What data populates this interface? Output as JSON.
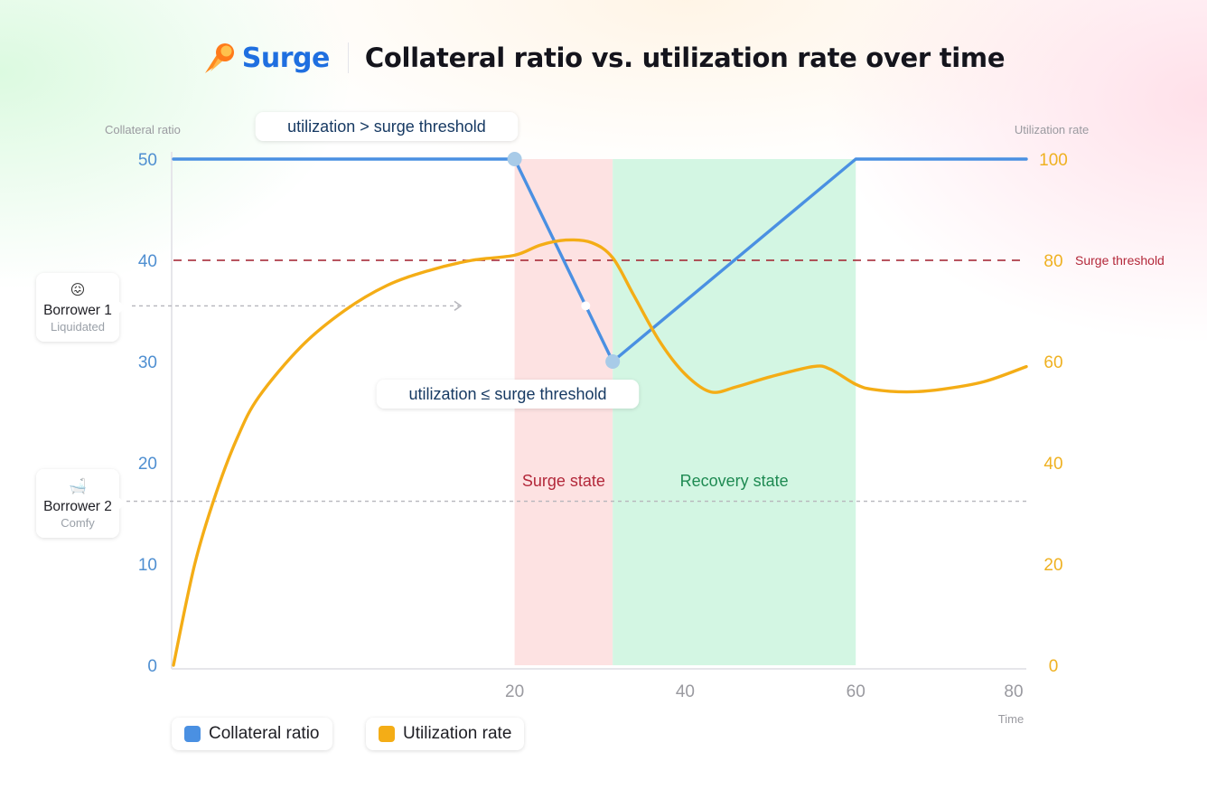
{
  "brand": {
    "name": "Surge",
    "icon": "comet-icon"
  },
  "title": "Collateral ratio vs. utilization rate over time",
  "colors": {
    "collateral": "#4a90e2",
    "utilization": "#f4ad16",
    "surge_fill": "#fde2e2",
    "recovery_fill": "#d3f6e3",
    "threshold": "#a11d2b",
    "surge_label": "#b3283a",
    "recovery_label": "#1e8a52",
    "axis_left": "#4f8fd1",
    "axis_right": "#efb121"
  },
  "chart_data": {
    "type": "line",
    "title": "Collateral ratio vs. utilization rate over time",
    "xlabel": "Time",
    "y_left_label": "Collateral ratio",
    "y_right_label": "Utilization rate",
    "xlim": [
      -20,
      80
    ],
    "ylim_left": [
      0,
      50
    ],
    "ylim_right": [
      0,
      100
    ],
    "x_ticks": [
      "20",
      "40",
      "60",
      "80"
    ],
    "y_left_ticks": [
      "0",
      "10",
      "20",
      "30",
      "40",
      "50"
    ],
    "y_right_ticks": [
      "0",
      "20",
      "40",
      "60",
      "80",
      "100"
    ],
    "series": [
      {
        "name": "Collateral ratio",
        "axis": "left",
        "x": [
          -20,
          20,
          31.5,
          60,
          80
        ],
        "y": [
          50,
          50,
          30,
          50,
          50
        ]
      },
      {
        "name": "Utilization rate",
        "axis": "right",
        "x": [
          -20,
          -17.5,
          -15,
          -12.5,
          -10,
          -5,
          0,
          5,
          10,
          15,
          20,
          23,
          26,
          29,
          31.5,
          34,
          37,
          40,
          43,
          46,
          50,
          55,
          57,
          60,
          62,
          66,
          70,
          75,
          80
        ],
        "y": [
          0,
          20,
          34,
          45,
          53,
          63,
          70,
          75,
          78,
          80,
          81,
          83,
          84,
          83.5,
          80.5,
          73,
          64,
          57.5,
          54,
          55,
          57,
          59,
          58.5,
          55.5,
          54.5,
          54,
          54.5,
          56,
          59
        ]
      }
    ],
    "threshold": {
      "value": 80,
      "axis": "right",
      "label": "Surge threshold"
    },
    "regions": [
      {
        "name": "Surge state",
        "x0": 20,
        "x1": 31.5
      },
      {
        "name": "Recovery state",
        "x0": 31.5,
        "x1": 60
      }
    ],
    "annotations": [
      {
        "text": "utilization > surge threshold"
      },
      {
        "text": "utilization ≤ surge threshold"
      }
    ],
    "borrowers": [
      {
        "name": "Borrower 1",
        "status": "Liquidated",
        "emoji": "😖",
        "collateral_ratio": 35.5
      },
      {
        "name": "Borrower 2",
        "status": "Comfy",
        "emoji": "🛁",
        "collateral_ratio": 16.2
      }
    ],
    "grid": false,
    "legend": "bottom-left"
  }
}
